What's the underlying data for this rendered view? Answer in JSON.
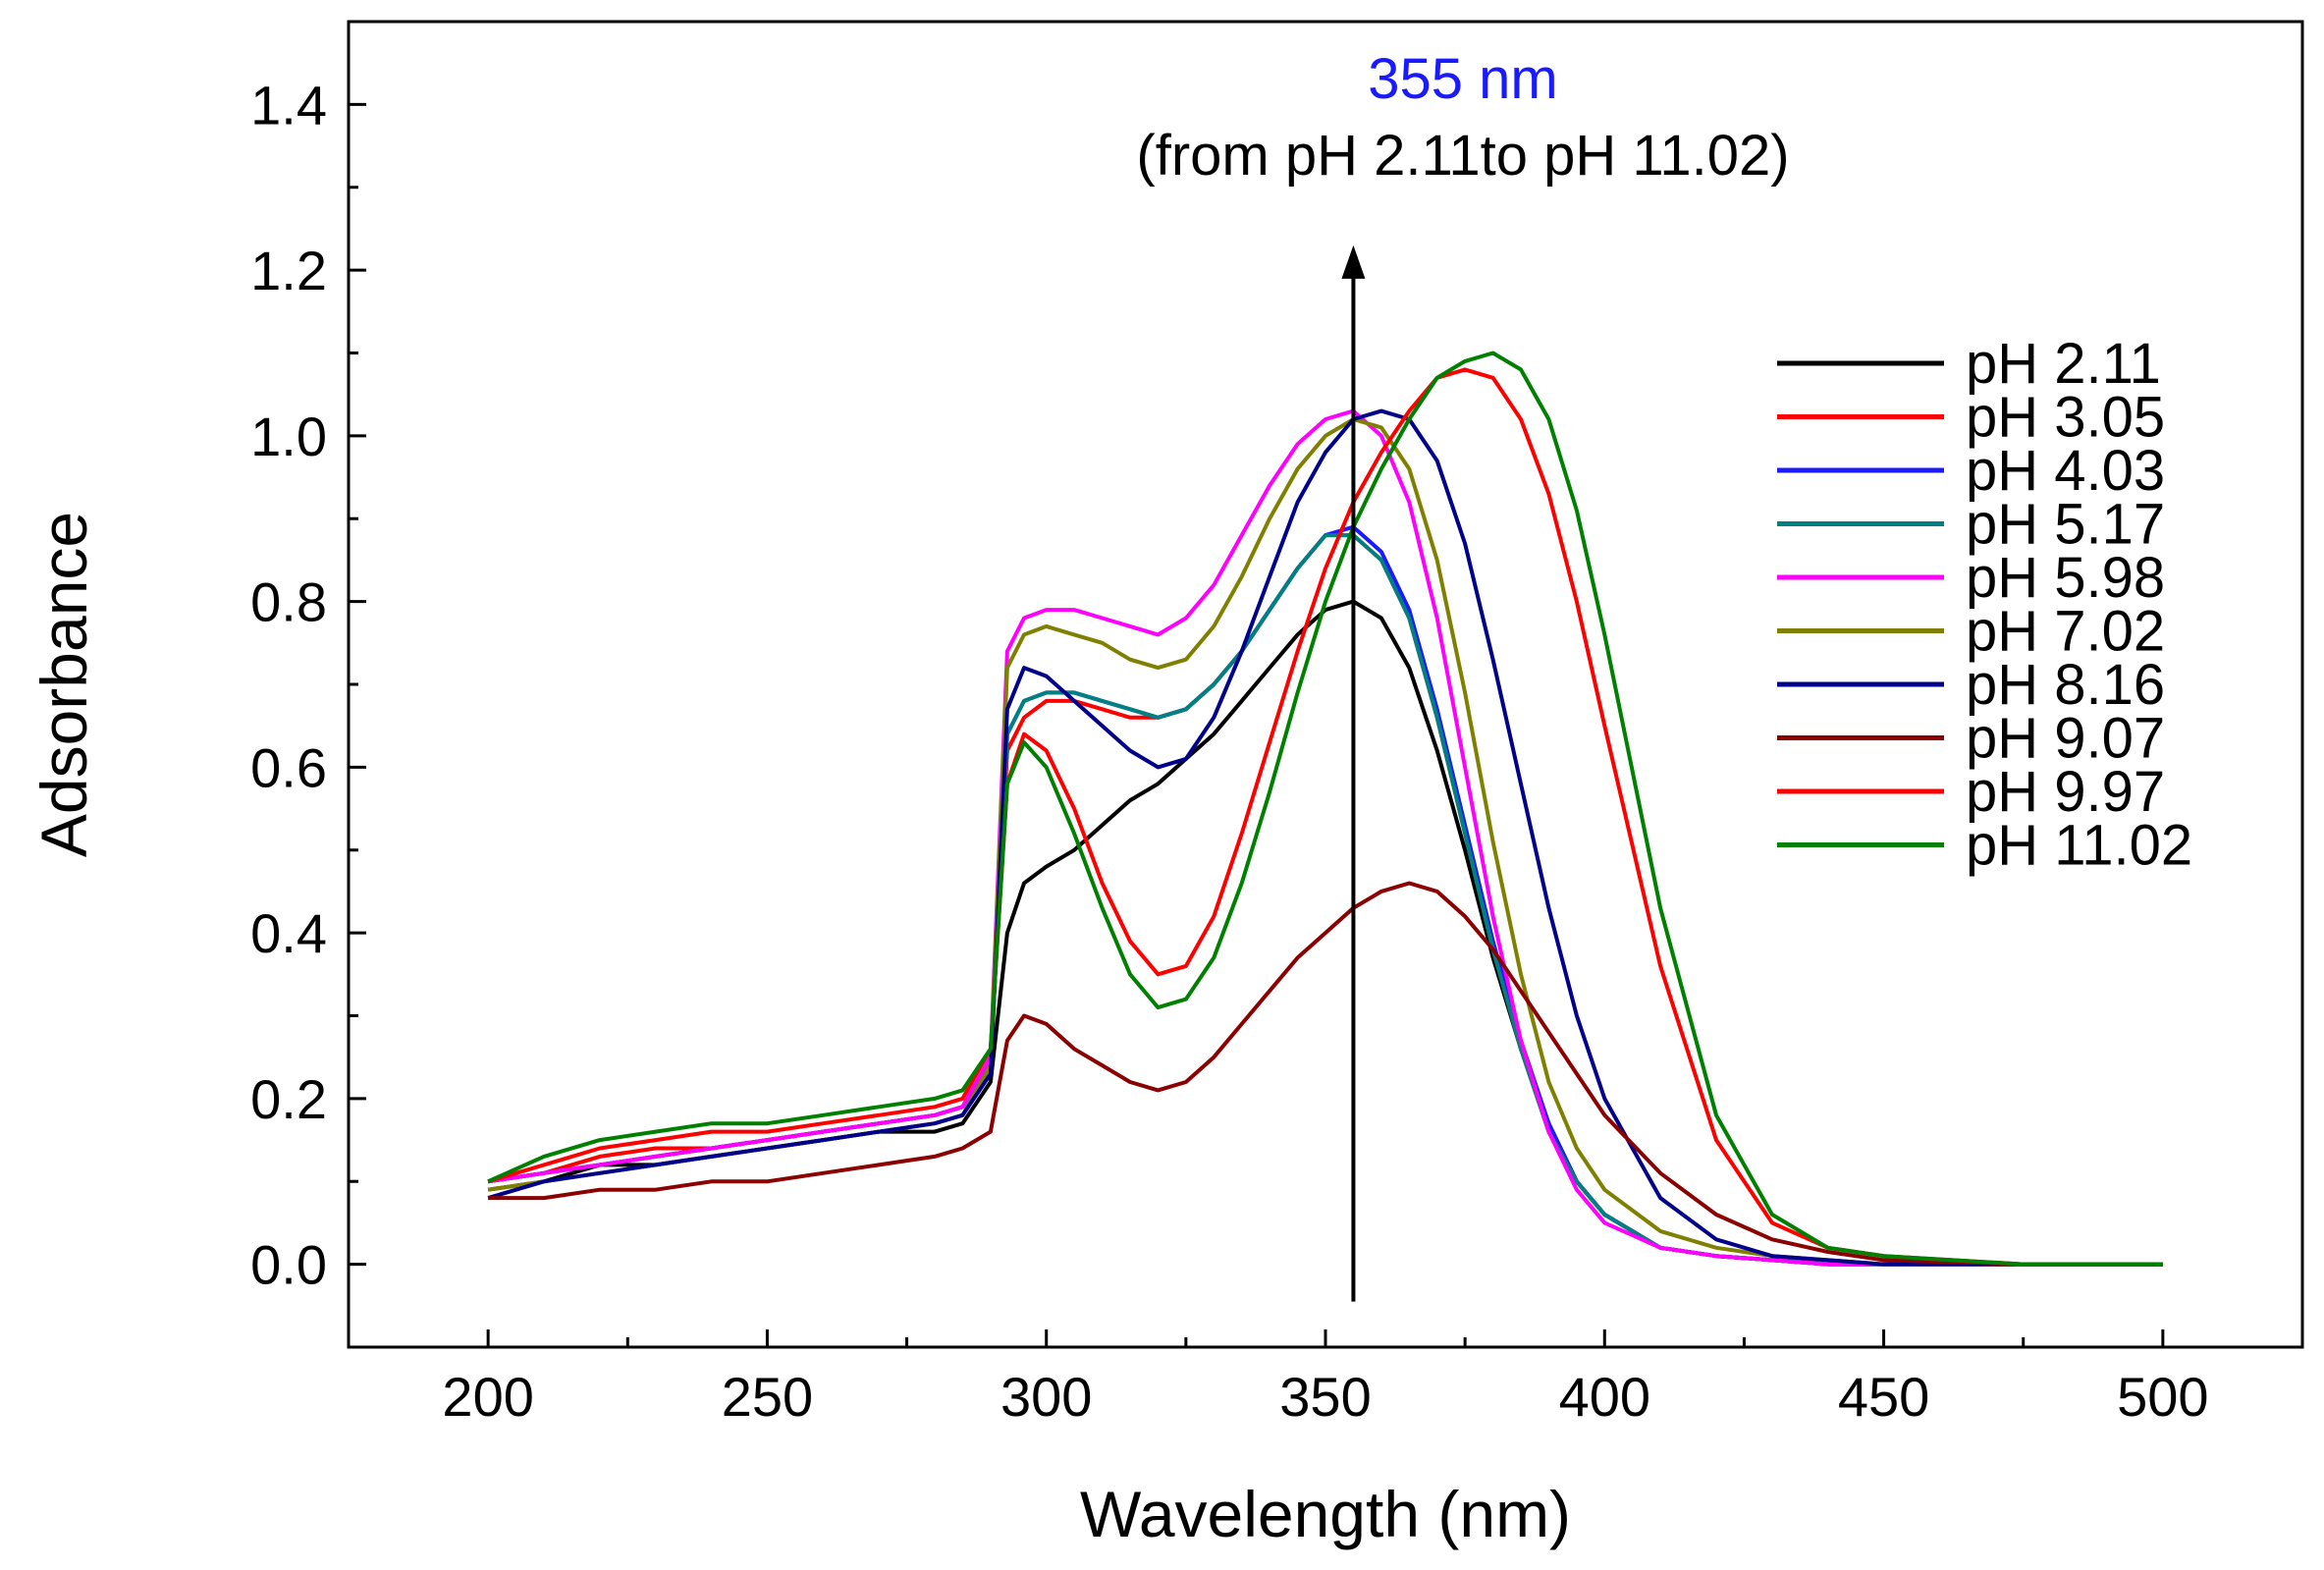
{
  "chart_data": {
    "type": "line",
    "title": "",
    "xlabel": "Wavelength (nm)",
    "ylabel": "Adsorbance",
    "xlim": [
      175,
      525
    ],
    "ylim": [
      -0.1,
      1.5
    ],
    "xticks": [
      200,
      250,
      300,
      350,
      400,
      450,
      500
    ],
    "xtick_labels": [
      "200",
      "250",
      "300",
      "350",
      "400",
      "450",
      "500"
    ],
    "yticks": [
      0.0,
      0.2,
      0.4,
      0.6,
      0.8,
      1.0,
      1.2,
      1.4
    ],
    "ytick_labels": [
      "0.0",
      "0.2",
      "0.4",
      "0.6",
      "0.8",
      "1.0",
      "1.2",
      "1.4"
    ],
    "annotation": {
      "wavelength": "355 nm",
      "wavelength_color": "#1a1aff",
      "range_text": "(from pH 2.11to pH 11.02)",
      "arrow_x": 355,
      "arrow_from": -0.045,
      "arrow_to": 1.23
    },
    "legend_position": "right",
    "series": [
      {
        "name": "pH 2.11",
        "color": "#000000",
        "x": [
          200,
          210,
          220,
          230,
          240,
          250,
          260,
          270,
          280,
          285,
          290,
          293,
          296,
          300,
          305,
          310,
          315,
          320,
          325,
          330,
          335,
          340,
          345,
          350,
          355,
          360,
          365,
          370,
          375,
          380,
          385,
          390,
          395,
          400,
          410,
          420,
          430,
          440,
          450,
          475,
          500
        ],
        "y": [
          0.09,
          0.1,
          0.12,
          0.12,
          0.13,
          0.14,
          0.15,
          0.16,
          0.16,
          0.17,
          0.22,
          0.4,
          0.46,
          0.48,
          0.5,
          0.53,
          0.56,
          0.58,
          0.61,
          0.64,
          0.68,
          0.72,
          0.76,
          0.79,
          0.8,
          0.78,
          0.72,
          0.62,
          0.5,
          0.37,
          0.26,
          0.17,
          0.1,
          0.06,
          0.02,
          0.01,
          0.005,
          0.0,
          0.0,
          0.0,
          0.0
        ]
      },
      {
        "name": "pH 3.05",
        "color": "#ff0000",
        "x": [
          200,
          210,
          220,
          230,
          240,
          250,
          260,
          270,
          280,
          285,
          290,
          293,
          296,
          300,
          305,
          310,
          315,
          320,
          325,
          330,
          335,
          340,
          345,
          350,
          355,
          360,
          365,
          370,
          375,
          380,
          385,
          390,
          395,
          400,
          410,
          420,
          430,
          440,
          450,
          475,
          500
        ],
        "y": [
          0.1,
          0.11,
          0.13,
          0.14,
          0.14,
          0.15,
          0.16,
          0.17,
          0.18,
          0.19,
          0.25,
          0.62,
          0.66,
          0.68,
          0.68,
          0.67,
          0.66,
          0.66,
          0.67,
          0.7,
          0.74,
          0.79,
          0.84,
          0.88,
          0.88,
          0.85,
          0.78,
          0.66,
          0.52,
          0.38,
          0.26,
          0.16,
          0.1,
          0.06,
          0.02,
          0.01,
          0.005,
          0.0,
          0.0,
          0.0,
          0.0
        ]
      },
      {
        "name": "pH 4.03",
        "color": "#1a1aff",
        "x": [
          200,
          210,
          220,
          230,
          240,
          250,
          260,
          270,
          280,
          285,
          290,
          293,
          296,
          300,
          305,
          310,
          315,
          320,
          325,
          330,
          335,
          340,
          345,
          350,
          355,
          360,
          365,
          370,
          375,
          380,
          385,
          390,
          395,
          400,
          410,
          420,
          430,
          440,
          450,
          475,
          500
        ],
        "y": [
          0.1,
          0.11,
          0.12,
          0.13,
          0.14,
          0.15,
          0.16,
          0.17,
          0.18,
          0.19,
          0.24,
          0.64,
          0.68,
          0.69,
          0.69,
          0.68,
          0.67,
          0.66,
          0.67,
          0.7,
          0.74,
          0.79,
          0.84,
          0.88,
          0.89,
          0.86,
          0.79,
          0.67,
          0.53,
          0.39,
          0.27,
          0.17,
          0.1,
          0.06,
          0.02,
          0.01,
          0.005,
          0.0,
          0.0,
          0.0,
          0.0
        ]
      },
      {
        "name": "pH 5.17",
        "color": "#008080",
        "x": [
          200,
          210,
          220,
          230,
          240,
          250,
          260,
          270,
          280,
          285,
          290,
          293,
          296,
          300,
          305,
          310,
          315,
          320,
          325,
          330,
          335,
          340,
          345,
          350,
          355,
          360,
          365,
          370,
          375,
          380,
          385,
          390,
          395,
          400,
          410,
          420,
          430,
          440,
          450,
          475,
          500
        ],
        "y": [
          0.1,
          0.11,
          0.12,
          0.13,
          0.14,
          0.15,
          0.16,
          0.17,
          0.18,
          0.19,
          0.24,
          0.64,
          0.68,
          0.69,
          0.69,
          0.68,
          0.67,
          0.66,
          0.67,
          0.7,
          0.74,
          0.79,
          0.84,
          0.88,
          0.88,
          0.85,
          0.78,
          0.66,
          0.52,
          0.38,
          0.26,
          0.16,
          0.1,
          0.06,
          0.02,
          0.01,
          0.005,
          0.0,
          0.0,
          0.0,
          0.0
        ]
      },
      {
        "name": "pH 5.98",
        "color": "#ff00ff",
        "x": [
          200,
          210,
          220,
          230,
          240,
          250,
          260,
          270,
          280,
          285,
          290,
          293,
          296,
          300,
          305,
          310,
          315,
          320,
          325,
          330,
          335,
          340,
          345,
          350,
          355,
          360,
          365,
          370,
          375,
          380,
          385,
          390,
          395,
          400,
          410,
          420,
          430,
          440,
          450,
          475,
          500
        ],
        "y": [
          0.1,
          0.11,
          0.12,
          0.13,
          0.14,
          0.15,
          0.16,
          0.17,
          0.18,
          0.19,
          0.25,
          0.74,
          0.78,
          0.79,
          0.79,
          0.78,
          0.77,
          0.76,
          0.78,
          0.82,
          0.88,
          0.94,
          0.99,
          1.02,
          1.03,
          1.0,
          0.92,
          0.78,
          0.6,
          0.42,
          0.27,
          0.16,
          0.09,
          0.05,
          0.02,
          0.01,
          0.005,
          0.0,
          0.0,
          0.0,
          0.0
        ]
      },
      {
        "name": "pH 7.02",
        "color": "#808000",
        "x": [
          200,
          210,
          220,
          230,
          240,
          250,
          260,
          270,
          280,
          285,
          290,
          293,
          296,
          300,
          305,
          310,
          315,
          320,
          325,
          330,
          335,
          340,
          345,
          350,
          355,
          360,
          365,
          370,
          375,
          380,
          385,
          390,
          395,
          400,
          410,
          420,
          430,
          440,
          450,
          475,
          500
        ],
        "y": [
          0.09,
          0.1,
          0.11,
          0.12,
          0.13,
          0.14,
          0.15,
          0.16,
          0.17,
          0.18,
          0.24,
          0.72,
          0.76,
          0.77,
          0.76,
          0.75,
          0.73,
          0.72,
          0.73,
          0.77,
          0.83,
          0.9,
          0.96,
          1.0,
          1.02,
          1.01,
          0.96,
          0.85,
          0.69,
          0.51,
          0.35,
          0.22,
          0.14,
          0.09,
          0.04,
          0.02,
          0.01,
          0.005,
          0.0,
          0.0,
          0.0
        ]
      },
      {
        "name": "pH 8.16",
        "color": "#00008b",
        "x": [
          200,
          210,
          220,
          230,
          240,
          250,
          260,
          270,
          280,
          285,
          290,
          293,
          296,
          300,
          305,
          310,
          315,
          320,
          325,
          330,
          335,
          340,
          345,
          350,
          355,
          360,
          365,
          370,
          375,
          380,
          385,
          390,
          395,
          400,
          410,
          420,
          430,
          440,
          450,
          475,
          500
        ],
        "y": [
          0.08,
          0.1,
          0.11,
          0.12,
          0.13,
          0.14,
          0.15,
          0.16,
          0.17,
          0.18,
          0.23,
          0.67,
          0.72,
          0.71,
          0.68,
          0.65,
          0.62,
          0.6,
          0.61,
          0.66,
          0.74,
          0.83,
          0.92,
          0.98,
          1.02,
          1.03,
          1.02,
          0.97,
          0.87,
          0.73,
          0.58,
          0.43,
          0.3,
          0.2,
          0.08,
          0.03,
          0.01,
          0.005,
          0.0,
          0.0,
          0.0
        ]
      },
      {
        "name": "pH 9.07",
        "color": "#8b0000",
        "x": [
          200,
          210,
          220,
          230,
          240,
          250,
          260,
          270,
          280,
          285,
          290,
          293,
          296,
          300,
          305,
          310,
          315,
          320,
          325,
          330,
          335,
          340,
          345,
          350,
          355,
          360,
          365,
          370,
          375,
          380,
          385,
          390,
          395,
          400,
          410,
          420,
          430,
          440,
          450,
          475,
          500
        ],
        "y": [
          0.08,
          0.08,
          0.09,
          0.09,
          0.1,
          0.1,
          0.11,
          0.12,
          0.13,
          0.14,
          0.16,
          0.27,
          0.3,
          0.29,
          0.26,
          0.24,
          0.22,
          0.21,
          0.22,
          0.25,
          0.29,
          0.33,
          0.37,
          0.4,
          0.43,
          0.45,
          0.46,
          0.45,
          0.42,
          0.38,
          0.33,
          0.28,
          0.23,
          0.18,
          0.11,
          0.06,
          0.03,
          0.015,
          0.005,
          0.0,
          0.0
        ]
      },
      {
        "name": "pH 9.97",
        "color": "#ff0000",
        "x": [
          200,
          210,
          220,
          230,
          240,
          250,
          260,
          270,
          280,
          285,
          290,
          293,
          296,
          300,
          305,
          310,
          315,
          320,
          325,
          330,
          335,
          340,
          345,
          350,
          355,
          360,
          365,
          370,
          375,
          380,
          385,
          390,
          395,
          400,
          410,
          420,
          430,
          440,
          450,
          475,
          500
        ],
        "y": [
          0.1,
          0.12,
          0.14,
          0.15,
          0.16,
          0.16,
          0.17,
          0.18,
          0.19,
          0.2,
          0.26,
          0.58,
          0.64,
          0.62,
          0.55,
          0.46,
          0.39,
          0.35,
          0.36,
          0.42,
          0.52,
          0.63,
          0.74,
          0.84,
          0.92,
          0.98,
          1.03,
          1.07,
          1.08,
          1.07,
          1.02,
          0.93,
          0.8,
          0.65,
          0.36,
          0.15,
          0.05,
          0.02,
          0.01,
          0.0,
          0.0
        ]
      },
      {
        "name": "pH 11.02",
        "color": "#008000",
        "x": [
          200,
          210,
          220,
          230,
          240,
          250,
          260,
          270,
          280,
          285,
          290,
          293,
          296,
          300,
          305,
          310,
          315,
          320,
          325,
          330,
          335,
          340,
          345,
          350,
          355,
          360,
          365,
          370,
          375,
          380,
          385,
          390,
          395,
          400,
          410,
          420,
          430,
          440,
          450,
          475,
          500
        ],
        "y": [
          0.1,
          0.13,
          0.15,
          0.16,
          0.17,
          0.17,
          0.18,
          0.19,
          0.2,
          0.21,
          0.26,
          0.58,
          0.63,
          0.6,
          0.52,
          0.43,
          0.35,
          0.31,
          0.32,
          0.37,
          0.46,
          0.57,
          0.69,
          0.8,
          0.89,
          0.96,
          1.02,
          1.07,
          1.09,
          1.1,
          1.08,
          1.02,
          0.91,
          0.76,
          0.43,
          0.18,
          0.06,
          0.02,
          0.01,
          0.0,
          0.0
        ]
      }
    ]
  }
}
